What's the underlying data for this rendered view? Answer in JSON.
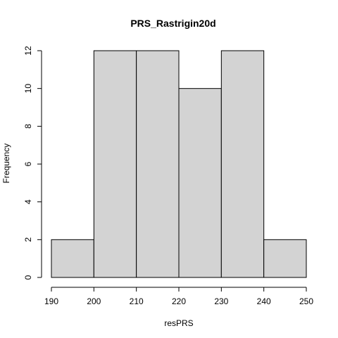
{
  "chart_data": {
    "type": "bar",
    "title": "PRS_Rastrigin20d",
    "xlabel": "resPRS",
    "ylabel": "Frequency",
    "bins": [
      {
        "from": 190,
        "to": 200,
        "count": 2
      },
      {
        "from": 200,
        "to": 210,
        "count": 12
      },
      {
        "from": 210,
        "to": 220,
        "count": 12
      },
      {
        "from": 220,
        "to": 230,
        "count": 10
      },
      {
        "from": 230,
        "to": 240,
        "count": 12
      },
      {
        "from": 240,
        "to": 250,
        "count": 2
      }
    ],
    "xlim": [
      190,
      250
    ],
    "ylim": [
      0,
      12
    ],
    "x_ticks": [
      190,
      200,
      210,
      220,
      230,
      240,
      250
    ],
    "y_ticks": [
      0,
      2,
      4,
      6,
      8,
      10,
      12
    ],
    "bar_color": "#d3d3d3",
    "grid": false,
    "legend": "none"
  }
}
